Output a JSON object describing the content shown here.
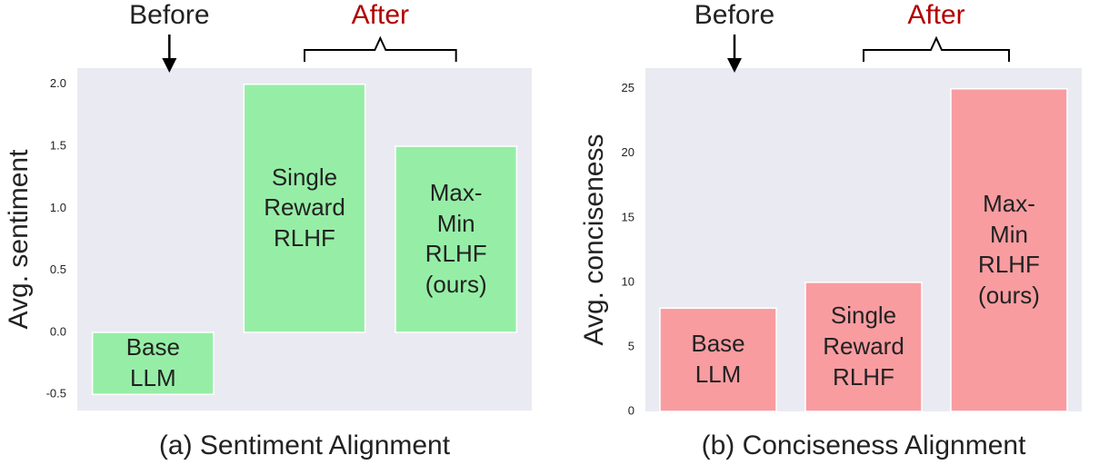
{
  "chart_data": [
    {
      "type": "bar",
      "title": "(a) Sentiment Alignment",
      "y_label": "Avg. sentiment",
      "annotations": [
        "Before",
        "After"
      ],
      "categories": [
        "Base LLM",
        "Single Reward RLHF",
        "Max-Min RLHF (ours)"
      ],
      "values": [
        -0.5,
        2.0,
        1.5
      ],
      "color": "#96eea6",
      "ylim": [
        -0.63,
        2.13
      ],
      "yticks": [
        -0.5,
        {
          "value": 0,
          "label": "0.0"
        },
        0.5,
        {
          "value": 1,
          "label": "1.0"
        },
        1.5,
        {
          "value": 2,
          "label": "2.0"
        }
      ],
      "grid": false
    },
    {
      "type": "bar",
      "title": "(b) Conciseness Alignment",
      "y_label": "Avg. conciseness",
      "annotations": [
        "Before",
        "After"
      ],
      "categories": [
        "Base LLM",
        "Single Reward RLHF",
        "Max-Min RLHF (ours)"
      ],
      "values": [
        8,
        10,
        25
      ],
      "color": "#f89ca0",
      "ylim": [
        0,
        26.6
      ],
      "yticks": [
        0,
        5,
        10,
        15,
        20,
        25
      ],
      "grid": false
    }
  ]
}
